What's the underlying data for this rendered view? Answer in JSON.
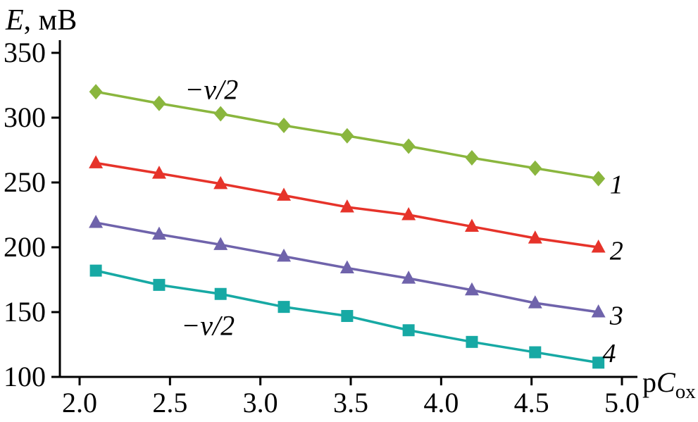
{
  "chart_data": {
    "type": "line",
    "title": "",
    "ylabel": {
      "symbol": "E",
      "rest": ", мВ"
    },
    "xlabel": {
      "prefix": "p",
      "symbol": "C",
      "subscript": "ox"
    },
    "xlim": [
      2.0,
      5.0
    ],
    "ylim": [
      100,
      350
    ],
    "xticks": [
      2.0,
      2.5,
      3.0,
      3.5,
      4.0,
      4.5,
      5.0
    ],
    "xtick_labels": [
      "2.0",
      "2.5",
      "3.0",
      "3.5",
      "4.0",
      "4.5",
      "5.0"
    ],
    "yticks": [
      100,
      150,
      200,
      250,
      300,
      350
    ],
    "ytick_labels": [
      "100",
      "150",
      "200",
      "250",
      "300",
      "350"
    ],
    "grid": false,
    "legend": "none",
    "axis_color": "#000000",
    "x": [
      2.09,
      2.44,
      2.78,
      3.13,
      3.48,
      3.82,
      4.17,
      4.52,
      4.87
    ],
    "series": [
      {
        "name": "1",
        "marker": "diamond",
        "color": "#8ab63e",
        "values": [
          320,
          311,
          303,
          294,
          286,
          278,
          269,
          261,
          253
        ]
      },
      {
        "name": "2",
        "marker": "triangle",
        "color": "#e6332a",
        "values": [
          265,
          257,
          249,
          240,
          231,
          225,
          216,
          207,
          200
        ]
      },
      {
        "name": "3",
        "marker": "triangle",
        "color": "#6f63ab",
        "values": [
          219,
          210,
          202,
          193,
          184,
          176,
          167,
          157,
          150
        ]
      },
      {
        "name": "4",
        "marker": "square",
        "color": "#17a9a4",
        "values": [
          182,
          171,
          164,
          154,
          147,
          136,
          127,
          119,
          111
        ]
      }
    ],
    "series_labels": [
      {
        "text": "1",
        "x": 4.97,
        "y": 248
      },
      {
        "text": "2",
        "x": 4.97,
        "y": 197
      },
      {
        "text": "3",
        "x": 4.97,
        "y": 147
      },
      {
        "text": "4",
        "x": 4.93,
        "y": 118
      }
    ],
    "annotations": [
      {
        "text": "−v/2",
        "x": 2.73,
        "y": 322
      },
      {
        "text": "−v/2",
        "x": 2.71,
        "y": 140
      }
    ]
  }
}
